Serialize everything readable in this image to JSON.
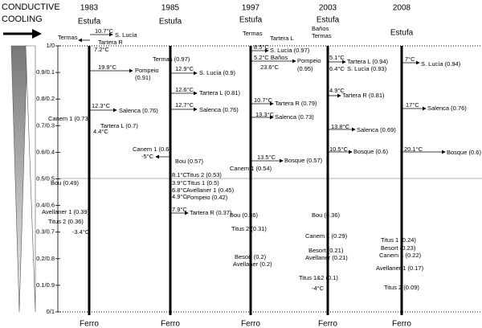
{
  "header": {
    "title_line1": "CONDUCTIVE",
    "title_line2": "COOLING"
  },
  "axis": {
    "labels": [
      "1/0",
      "0.9/0.1",
      "0.8/0.2",
      "0.7/0.3",
      "0.6/0.4",
      "0.5/0.5",
      "0.4/0.6",
      "0.3/0.7",
      "0.2/0.8",
      "0.1/0.9",
      "0/1"
    ]
  },
  "columns": [
    {
      "year": "1983",
      "top": "Estufa",
      "bottom": "Ferro",
      "labels": [
        "10.7°C",
        "S. Lucía",
        "Termas",
        "Tartera R",
        "7.2°C",
        "19.9°C",
        "Pompeio",
        "(0.91)",
        "12.3°C",
        "Salenca (0.76)",
        "Canem 1 (0.73)",
        "Tartera L (0.7)",
        "4.4°C",
        "Bou (0.49)",
        "Avellaner 1 (0.39)",
        "Titus 2 (0.36)",
        "-3.4°C"
      ]
    },
    {
      "year": "1985",
      "top": "Estufa",
      "bottom": "Ferro",
      "labels": [
        "Termas (0.97)",
        "12.9°C",
        "S. Lucía (0.9)",
        "12.6°C",
        "Tartera L (0.81)",
        "12.7°C",
        "Salenca (0.76)",
        "Canem 1 (0.6)",
        "-5°C",
        "Bou (0.57)",
        "8.1°C",
        "Titus 2 (0.53)",
        "3.9°C",
        "Titus 1 (0.5)",
        "6.8°C",
        "Avellaner 1 (0.45)",
        "4.9°C",
        "Pompeio (0.42)",
        "7.9°C",
        "Tartera R (0.37)"
      ]
    },
    {
      "year": "1997",
      "top": "Estufa",
      "bottom": "Ferro",
      "labels": [
        "Termas",
        "Tartera L",
        "8.5°C",
        "S. Lucía (0.97)",
        "5.2°C Baños",
        "23.6°C",
        "Pompeio",
        "(0.95)",
        "10.7°C",
        "Tartera R (0.79)",
        "13.3°C",
        "Salenca (0.73)",
        "13.5°C",
        "Bosque (0.57)",
        "Canem 1 (0.54)",
        "Bou (0.36)",
        "Titus 2 (0.31)",
        "Besort (0.2)",
        "Avellaner (0.2)"
      ]
    },
    {
      "year": "2003",
      "top": "Estufa",
      "bottom": "Ferro",
      "labels": [
        "Baños",
        "Termas",
        "5.1°C",
        "Tartera L (0.94)",
        "6.4°C",
        "S. Lucía (0.93)",
        "4.9°C",
        "Tartera R (0.81)",
        "13.8°C",
        "Salenca (0.69)",
        "10.5°C",
        "Bosque (0.6)",
        "Bou (0.36)",
        "Canem 1 (0.29)",
        "Besort (0.21)",
        "Avellaner (0.21)",
        "Titus 1&2 (0.1)",
        "-4°C"
      ]
    },
    {
      "year": "2008",
      "top": "Estufa",
      "bottom": "Ferro",
      "labels": [
        "7°C",
        "S. Lucía (0.94)",
        "17°C",
        "Salenca (0.76)",
        "20.1°C",
        "Bosque (0.6)",
        "Titus 1 (0.24)",
        "Besort (0.23)",
        "Canem 1 (0.22)",
        "Avellaner 1 (0.17)",
        "Titus 2 (0.09)"
      ]
    }
  ]
}
